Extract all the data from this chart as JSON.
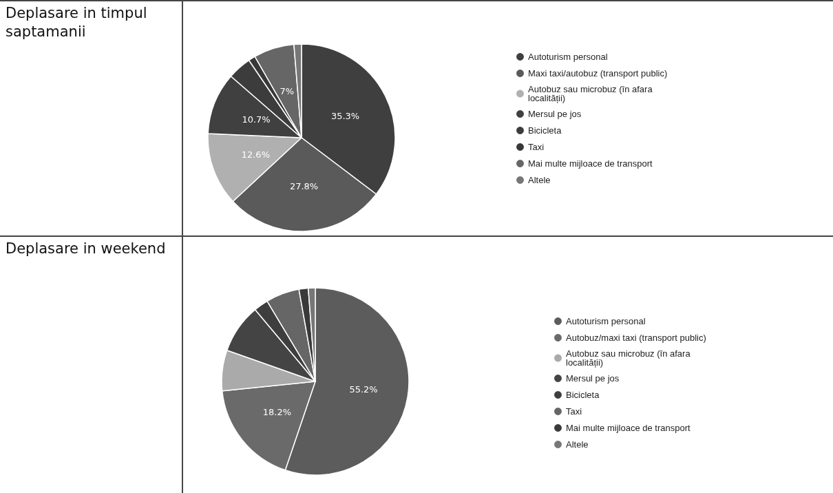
{
  "chart_data": [
    {
      "type": "pie",
      "title": "Deplasare in timpul saptamanii",
      "legend": "right",
      "categories": [
        "Autoturism personal",
        "Maxi taxi/autobuz (transport public)",
        "Autobuz sau microbuz (în afara localității)",
        "Mersul pe jos",
        "Bicicleta",
        "Taxi",
        "Mai multe mijloace de transport",
        "Altele"
      ],
      "values": [
        35.3,
        27.8,
        12.6,
        10.7,
        4.1,
        1.2,
        7,
        1.3
      ],
      "value_labels": [
        "35.3%",
        "27.8%",
        "12.6%",
        "10.7%",
        null,
        null,
        "7%",
        null
      ],
      "colors": [
        "#3f3f3f",
        "#5a5a5a",
        "#b0b0b0",
        "#404040",
        "#3c3c3c",
        "#383838",
        "#666666",
        "#777777"
      ]
    },
    {
      "type": "pie",
      "title": "Deplasare in weekend",
      "legend": "right",
      "categories": [
        "Autoturism personal",
        "Autobuz/maxi taxi (transport public)",
        "Autobuz sau microbuz (în afara localității)",
        "Mersul pe jos",
        "Bicicleta",
        "Taxi",
        "Mai multe mijloace de transport",
        "Altele"
      ],
      "values": [
        55.2,
        18.2,
        7,
        8.5,
        2.5,
        5.8,
        1.6,
        1.2
      ],
      "value_labels": [
        "55.2%",
        "18.2%",
        null,
        null,
        null,
        null,
        null,
        null
      ],
      "colors": [
        "#5c5c5c",
        "#6a6a6a",
        "#aaaaaa",
        "#444444",
        "#3e3e3e",
        "#666666",
        "#3a3a3a",
        "#777777"
      ]
    }
  ]
}
